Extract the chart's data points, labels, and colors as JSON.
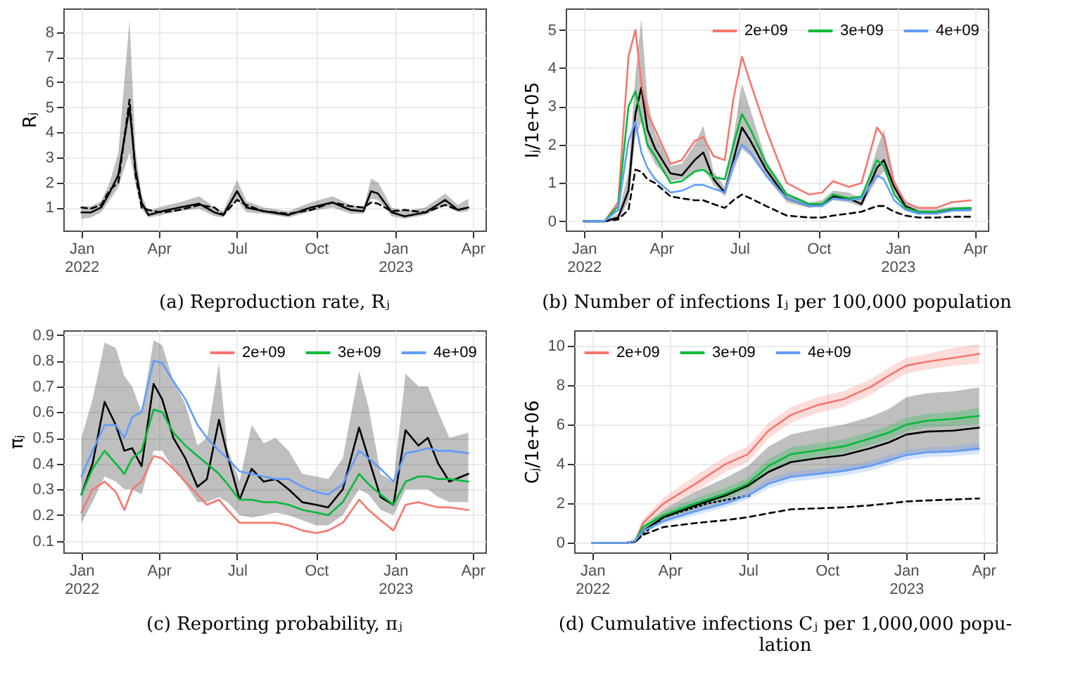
{
  "chart_data": [
    {
      "type": "line",
      "title": "(a) Reproduction rate, Rⱼ",
      "ylabel": "Rⱼ",
      "grid": true,
      "xlim": [
        "2021-12-11",
        "2023-04-16"
      ],
      "ylim": [
        0.08,
        8.94
      ],
      "yticks": [
        1,
        2,
        3,
        4,
        5,
        6,
        7,
        8
      ],
      "xticks": [
        {
          "value": "2022-01-01",
          "label": "Jan 2022"
        },
        {
          "value": "2022-04-01",
          "label": "Apr"
        },
        {
          "value": "2022-07-01",
          "label": "Jul"
        },
        {
          "value": "2022-10-01",
          "label": "Oct"
        },
        {
          "value": "2023-01-01",
          "label": "Jan 2023"
        },
        {
          "value": "2023-04-01",
          "label": "Apr"
        }
      ],
      "x": [
        "2022-01-01",
        "2022-01-12",
        "2022-01-24",
        "2022-02-03",
        "2022-02-13",
        "2022-02-26",
        "2022-03-05",
        "2022-03-12",
        "2022-03-20",
        "2022-04-05",
        "2022-04-25",
        "2022-05-18",
        "2022-06-05",
        "2022-06-15",
        "2022-07-01",
        "2022-07-12",
        "2022-08-01",
        "2022-08-30",
        "2022-09-25",
        "2022-10-20",
        "2022-11-10",
        "2022-11-25",
        "2022-12-04",
        "2022-12-12",
        "2022-12-28",
        "2023-01-12",
        "2023-02-05",
        "2023-02-28",
        "2023-03-15",
        "2023-03-27"
      ],
      "series": [
        {
          "color": "#000000",
          "line_style": "solid",
          "values": [
            0.8,
            0.8,
            1.0,
            1.6,
            2.3,
            5.0,
            2.5,
            1.2,
            0.7,
            0.85,
            1.0,
            1.15,
            0.8,
            0.7,
            1.65,
            1.0,
            0.85,
            0.7,
            1.0,
            1.2,
            0.9,
            0.85,
            1.65,
            1.55,
            0.8,
            0.65,
            0.8,
            1.3,
            0.9,
            1.0
          ],
          "lower": [
            0.55,
            0.6,
            0.8,
            1.3,
            1.8,
            3.2,
            1.9,
            0.95,
            0.6,
            0.7,
            0.85,
            0.95,
            0.65,
            0.6,
            1.3,
            0.8,
            0.75,
            0.6,
            0.85,
            1.0,
            0.75,
            0.75,
            1.35,
            1.3,
            0.65,
            0.55,
            0.7,
            1.1,
            0.8,
            0.85
          ],
          "upper": [
            1.05,
            1.05,
            1.25,
            2.0,
            3.2,
            8.5,
            3.3,
            1.5,
            0.85,
            1.05,
            1.2,
            1.45,
            1.0,
            0.85,
            2.1,
            1.25,
            1.0,
            0.85,
            1.2,
            1.45,
            1.1,
            1.0,
            2.15,
            2.0,
            1.0,
            0.85,
            1.0,
            1.55,
            1.1,
            1.35
          ]
        },
        {
          "color": "#000000",
          "line_style": "dashed",
          "values": [
            1.0,
            0.95,
            1.1,
            1.7,
            2.0,
            5.3,
            2.3,
            1.0,
            0.9,
            0.8,
            0.9,
            1.1,
            1.0,
            0.7,
            1.3,
            1.1,
            0.85,
            0.75,
            0.9,
            1.2,
            1.05,
            1.0,
            1.2,
            1.15,
            0.85,
            0.9,
            0.8,
            1.1,
            0.9,
            1.0
          ]
        }
      ]
    },
    {
      "type": "line",
      "title": "(b) Number of infections Iⱼ per 100,000 population",
      "ylabel": "Iⱼ/1e+05",
      "grid": true,
      "legend": "top right",
      "xlim": [
        "2021-12-11",
        "2023-04-16"
      ],
      "ylim": [
        -0.24,
        5.56
      ],
      "yticks": [
        0,
        1,
        2,
        3,
        4,
        5
      ],
      "xticks": [
        {
          "value": "2022-01-01",
          "label": "Jan 2022"
        },
        {
          "value": "2022-04-01",
          "label": "Apr"
        },
        {
          "value": "2022-07-01",
          "label": "Jul"
        },
        {
          "value": "2022-10-01",
          "label": "Oct"
        },
        {
          "value": "2023-01-01",
          "label": "Jan 2023"
        },
        {
          "value": "2023-04-01",
          "label": "Apr"
        }
      ],
      "x": [
        "2022-01-01",
        "2022-01-25",
        "2022-02-10",
        "2022-02-22",
        "2022-03-02",
        "2022-03-09",
        "2022-03-16",
        "2022-03-25",
        "2022-04-12",
        "2022-04-25",
        "2022-05-10",
        "2022-05-20",
        "2022-06-01",
        "2022-06-14",
        "2022-06-24",
        "2022-07-04",
        "2022-07-14",
        "2022-08-01",
        "2022-08-25",
        "2022-09-20",
        "2022-10-05",
        "2022-10-18",
        "2022-11-05",
        "2022-11-20",
        "2022-12-08",
        "2022-12-16",
        "2022-12-28",
        "2023-01-10",
        "2023-01-25",
        "2023-02-15",
        "2023-03-05",
        "2023-03-27"
      ],
      "series": [
        {
          "color": "#000000",
          "line_style": "solid",
          "values": [
            0,
            0,
            0.1,
            0.8,
            2.8,
            3.5,
            2.4,
            1.9,
            1.25,
            1.2,
            1.6,
            1.8,
            1.1,
            0.75,
            1.6,
            2.45,
            2.1,
            1.35,
            0.6,
            0.4,
            0.45,
            0.65,
            0.6,
            0.45,
            1.4,
            1.6,
            0.9,
            0.4,
            0.25,
            0.25,
            0.3,
            0.3
          ],
          "lower": [
            0,
            0,
            0.05,
            0.5,
            2.2,
            2.6,
            1.9,
            1.5,
            1.05,
            1.1,
            1.3,
            1.4,
            0.95,
            0.65,
            1.3,
            1.9,
            1.7,
            1.15,
            0.5,
            0.35,
            0.38,
            0.55,
            0.5,
            0.38,
            1.1,
            1.3,
            0.75,
            0.32,
            0.2,
            0.2,
            0.25,
            0.25
          ],
          "upper": [
            0,
            0,
            0.2,
            1.3,
            3.8,
            5.3,
            3.2,
            2.3,
            1.45,
            1.5,
            2.0,
            2.5,
            1.3,
            0.9,
            2.2,
            3.6,
            2.9,
            1.6,
            0.75,
            0.5,
            0.55,
            0.8,
            0.75,
            0.6,
            1.9,
            2.4,
            1.1,
            0.5,
            0.32,
            0.32,
            0.38,
            0.38
          ]
        },
        {
          "color": "#000000",
          "line_style": "dashed",
          "values": [
            0,
            0,
            0.05,
            0.3,
            1.35,
            1.3,
            1.1,
            1.0,
            0.65,
            0.6,
            0.55,
            0.55,
            0.45,
            0.35,
            0.55,
            0.7,
            0.6,
            0.4,
            0.15,
            0.1,
            0.1,
            0.15,
            0.2,
            0.25,
            0.4,
            0.4,
            0.25,
            0.15,
            0.1,
            0.1,
            0.12,
            0.12
          ]
        },
        {
          "name": "2e+09",
          "color": "#f8766d",
          "line_style": "solid",
          "values": [
            0,
            0,
            0.5,
            4.3,
            5.0,
            3.6,
            2.8,
            2.4,
            1.5,
            1.6,
            2.1,
            2.2,
            1.7,
            1.6,
            3.2,
            4.3,
            3.6,
            2.4,
            1.0,
            0.7,
            0.75,
            1.05,
            0.9,
            1.0,
            2.45,
            2.2,
            1.0,
            0.5,
            0.35,
            0.35,
            0.5,
            0.55
          ]
        },
        {
          "name": "3e+09",
          "color": "#00ba38",
          "line_style": "solid",
          "values": [
            0,
            0,
            0.4,
            3.0,
            3.4,
            2.7,
            2.0,
            1.7,
            1.0,
            1.05,
            1.3,
            1.35,
            1.15,
            1.1,
            2.0,
            2.8,
            2.4,
            1.5,
            0.7,
            0.45,
            0.45,
            0.7,
            0.6,
            0.65,
            1.6,
            1.45,
            0.7,
            0.35,
            0.25,
            0.25,
            0.33,
            0.35
          ]
        },
        {
          "name": "4e+09",
          "color": "#619cff",
          "line_style": "solid",
          "values": [
            0,
            0,
            0.3,
            2.1,
            2.6,
            1.8,
            1.4,
            1.1,
            0.75,
            0.8,
            0.95,
            0.95,
            0.85,
            0.75,
            1.5,
            2.0,
            1.8,
            1.2,
            0.6,
            0.4,
            0.4,
            0.6,
            0.55,
            0.6,
            1.2,
            1.1,
            0.55,
            0.3,
            0.2,
            0.2,
            0.28,
            0.3
          ]
        }
      ]
    },
    {
      "type": "line",
      "title": "(c) Reporting probability, πⱼ",
      "ylabel": "πⱼ",
      "grid": true,
      "legend": "top right",
      "xlim": [
        "2021-12-11",
        "2023-04-16"
      ],
      "ylim": [
        0.055,
        0.918
      ],
      "yticks": [
        0.1,
        0.2,
        0.3,
        0.4,
        0.5,
        0.6,
        0.7,
        0.8,
        0.9
      ],
      "xticks": [
        {
          "value": "2022-01-01",
          "label": "Jan 2022"
        },
        {
          "value": "2022-04-01",
          "label": "Apr"
        },
        {
          "value": "2022-07-01",
          "label": "Jul"
        },
        {
          "value": "2022-10-01",
          "label": "Oct"
        },
        {
          "value": "2023-01-01",
          "label": "Jan 2023"
        },
        {
          "value": "2023-04-01",
          "label": "Apr"
        }
      ],
      "x": [
        "2022-01-01",
        "2022-01-14",
        "2022-01-28",
        "2022-02-10",
        "2022-02-20",
        "2022-03-01",
        "2022-03-12",
        "2022-03-26",
        "2022-04-05",
        "2022-04-18",
        "2022-05-02",
        "2022-05-16",
        "2022-05-27",
        "2022-06-10",
        "2022-06-20",
        "2022-07-04",
        "2022-07-18",
        "2022-08-01",
        "2022-08-15",
        "2022-08-30",
        "2022-09-15",
        "2022-10-01",
        "2022-10-15",
        "2022-11-01",
        "2022-11-20",
        "2022-12-01",
        "2022-12-15",
        "2022-12-30",
        "2023-01-13",
        "2023-01-28",
        "2023-02-08",
        "2023-02-20",
        "2023-03-05",
        "2023-03-27"
      ],
      "series": [
        {
          "color": "#000000",
          "line_style": "solid",
          "values": [
            0.28,
            0.4,
            0.64,
            0.55,
            0.45,
            0.46,
            0.39,
            0.71,
            0.65,
            0.5,
            0.42,
            0.31,
            0.34,
            0.57,
            0.43,
            0.26,
            0.38,
            0.33,
            0.34,
            0.3,
            0.25,
            0.24,
            0.23,
            0.3,
            0.54,
            0.42,
            0.27,
            0.24,
            0.53,
            0.47,
            0.5,
            0.4,
            0.33,
            0.36
          ],
          "lower": [
            0.17,
            0.25,
            0.35,
            0.33,
            0.3,
            0.3,
            0.28,
            0.45,
            0.45,
            0.38,
            0.32,
            0.25,
            0.25,
            0.27,
            0.25,
            0.2,
            0.19,
            0.2,
            0.21,
            0.2,
            0.18,
            0.16,
            0.16,
            0.2,
            0.3,
            0.28,
            0.22,
            0.2,
            0.3,
            0.3,
            0.3,
            0.27,
            0.25,
            0.25
          ],
          "upper": [
            0.5,
            0.65,
            0.87,
            0.85,
            0.74,
            0.7,
            0.6,
            0.88,
            0.86,
            0.72,
            0.63,
            0.47,
            0.5,
            0.79,
            0.46,
            0.33,
            0.55,
            0.48,
            0.5,
            0.45,
            0.36,
            0.35,
            0.34,
            0.42,
            0.76,
            0.62,
            0.36,
            0.33,
            0.75,
            0.7,
            0.7,
            0.6,
            0.5,
            0.52
          ]
        },
        {
          "name": "2e+09",
          "color": "#f8766d",
          "line_style": "solid",
          "values": [
            0.21,
            0.3,
            0.33,
            0.29,
            0.22,
            0.3,
            0.33,
            0.43,
            0.42,
            0.38,
            0.33,
            0.28,
            0.24,
            0.26,
            0.22,
            0.17,
            0.17,
            0.17,
            0.17,
            0.16,
            0.14,
            0.13,
            0.14,
            0.17,
            0.26,
            0.22,
            0.18,
            0.14,
            0.24,
            0.25,
            0.24,
            0.23,
            0.23,
            0.22
          ]
        },
        {
          "name": "3e+09",
          "color": "#00ba38",
          "line_style": "solid",
          "values": [
            0.28,
            0.38,
            0.45,
            0.4,
            0.36,
            0.42,
            0.45,
            0.61,
            0.6,
            0.52,
            0.47,
            0.43,
            0.4,
            0.36,
            0.32,
            0.26,
            0.26,
            0.25,
            0.25,
            0.24,
            0.22,
            0.21,
            0.2,
            0.25,
            0.36,
            0.32,
            0.28,
            0.24,
            0.33,
            0.35,
            0.35,
            0.34,
            0.34,
            0.33
          ]
        },
        {
          "name": "4e+09",
          "color": "#619cff",
          "line_style": "solid",
          "values": [
            0.35,
            0.45,
            0.55,
            0.55,
            0.5,
            0.58,
            0.6,
            0.8,
            0.79,
            0.72,
            0.65,
            0.55,
            0.5,
            0.45,
            0.42,
            0.37,
            0.36,
            0.35,
            0.34,
            0.34,
            0.31,
            0.29,
            0.28,
            0.32,
            0.45,
            0.42,
            0.38,
            0.33,
            0.44,
            0.45,
            0.46,
            0.45,
            0.45,
            0.44
          ]
        }
      ]
    },
    {
      "type": "line",
      "title": "(d) Cumulative infections Cⱼ per 1,000,000 popu- lation",
      "ylabel": "Cⱼ/1e+06",
      "grid": true,
      "legend": "top left",
      "xlim": [
        "2021-12-11",
        "2023-04-16"
      ],
      "ylim": [
        -0.49,
        10.8
      ],
      "yticks": [
        0,
        2,
        4,
        6,
        8,
        10
      ],
      "xticks": [
        {
          "value": "2022-01-01",
          "label": "Jan 2022"
        },
        {
          "value": "2022-04-01",
          "label": "Apr"
        },
        {
          "value": "2022-07-01",
          "label": "Jul"
        },
        {
          "value": "2022-10-01",
          "label": "Oct"
        },
        {
          "value": "2023-01-01",
          "label": "Jan 2023"
        },
        {
          "value": "2023-04-01",
          "label": "Apr"
        }
      ],
      "x": [
        "2022-01-01",
        "2022-02-10",
        "2022-02-20",
        "2022-03-01",
        "2022-03-25",
        "2022-05-01",
        "2022-06-05",
        "2022-07-01",
        "2022-07-25",
        "2022-08-20",
        "2022-09-20",
        "2022-10-20",
        "2022-11-20",
        "2022-12-12",
        "2023-01-01",
        "2023-01-25",
        "2023-02-25",
        "2023-03-27"
      ],
      "series": [
        {
          "color": "#000000",
          "line_style": "solid",
          "values": [
            0,
            0,
            0.05,
            0.6,
            1.3,
            1.9,
            2.4,
            2.9,
            3.6,
            4.1,
            4.3,
            4.45,
            4.8,
            5.1,
            5.5,
            5.65,
            5.7,
            5.85
          ],
          "lower": [
            0,
            0,
            0.02,
            0.5,
            1.1,
            1.6,
            2.0,
            2.4,
            3.0,
            3.3,
            3.45,
            3.6,
            3.85,
            4.1,
            4.45,
            4.55,
            4.6,
            4.7
          ],
          "upper": [
            0,
            0,
            0.1,
            0.8,
            1.7,
            2.6,
            3.3,
            3.9,
            4.9,
            5.5,
            5.8,
            6.0,
            6.4,
            6.8,
            7.4,
            7.6,
            7.7,
            7.9
          ]
        },
        {
          "color": "#000000",
          "line_style": "dashed",
          "values": [
            null,
            0,
            0.05,
            0.4,
            0.8,
            1.0,
            1.15,
            1.3,
            1.5,
            1.7,
            1.75,
            1.8,
            1.9,
            2.0,
            2.1,
            2.15,
            2.2,
            2.25
          ]
        },
        {
          "color": "#000000",
          "line_style": "dotted",
          "x": [
            "2022-02-10",
            "2022-02-20",
            "2022-03-25",
            "2022-05-15",
            "2022-07-03"
          ],
          "values": [
            0,
            0.1,
            1.3,
            2.0,
            2.4
          ]
        },
        {
          "name": "2e+09",
          "color": "#f8766d",
          "line_style": "solid",
          "values": [
            0,
            0,
            0.1,
            1.0,
            2.0,
            3.0,
            4.0,
            4.5,
            5.7,
            6.5,
            7.0,
            7.3,
            7.9,
            8.5,
            9.0,
            9.2,
            9.4,
            9.6
          ],
          "lower": [
            0,
            0,
            0.05,
            0.8,
            1.7,
            2.6,
            3.6,
            4.1,
            5.3,
            6.1,
            6.6,
            6.9,
            7.5,
            8.1,
            8.6,
            8.8,
            9.0,
            9.1
          ],
          "upper": [
            0,
            0,
            0.15,
            1.2,
            2.3,
            3.4,
            4.4,
            4.9,
            6.1,
            6.9,
            7.4,
            7.7,
            8.3,
            8.9,
            9.4,
            9.6,
            9.9,
            10.1
          ]
        },
        {
          "name": "3e+09",
          "color": "#00ba38",
          "line_style": "solid",
          "values": [
            0,
            0,
            0.1,
            0.8,
            1.4,
            2.0,
            2.5,
            3.0,
            3.9,
            4.5,
            4.7,
            4.9,
            5.3,
            5.6,
            6.0,
            6.2,
            6.3,
            6.45
          ],
          "lower": [
            0,
            0,
            0.05,
            0.65,
            1.2,
            1.75,
            2.2,
            2.7,
            3.55,
            4.15,
            4.35,
            4.55,
            4.95,
            5.25,
            5.65,
            5.85,
            5.95,
            6.05
          ],
          "upper": [
            0,
            0,
            0.15,
            0.95,
            1.6,
            2.25,
            2.8,
            3.3,
            4.25,
            4.85,
            5.05,
            5.25,
            5.65,
            5.95,
            6.35,
            6.55,
            6.65,
            6.85
          ]
        },
        {
          "name": "4e+09",
          "color": "#619cff",
          "line_style": "solid",
          "values": [
            0,
            0,
            0.1,
            0.6,
            1.1,
            1.6,
            2.0,
            2.4,
            3.0,
            3.35,
            3.5,
            3.65,
            3.9,
            4.2,
            4.45,
            4.6,
            4.65,
            4.8
          ],
          "lower": [
            0,
            0,
            0.05,
            0.5,
            0.95,
            1.4,
            1.8,
            2.2,
            2.75,
            3.1,
            3.25,
            3.4,
            3.65,
            3.95,
            4.2,
            4.35,
            4.4,
            4.5
          ],
          "upper": [
            0,
            0,
            0.15,
            0.7,
            1.25,
            1.8,
            2.2,
            2.6,
            3.25,
            3.6,
            3.75,
            3.9,
            4.15,
            4.45,
            4.7,
            4.85,
            4.9,
            5.1
          ]
        }
      ]
    }
  ]
}
